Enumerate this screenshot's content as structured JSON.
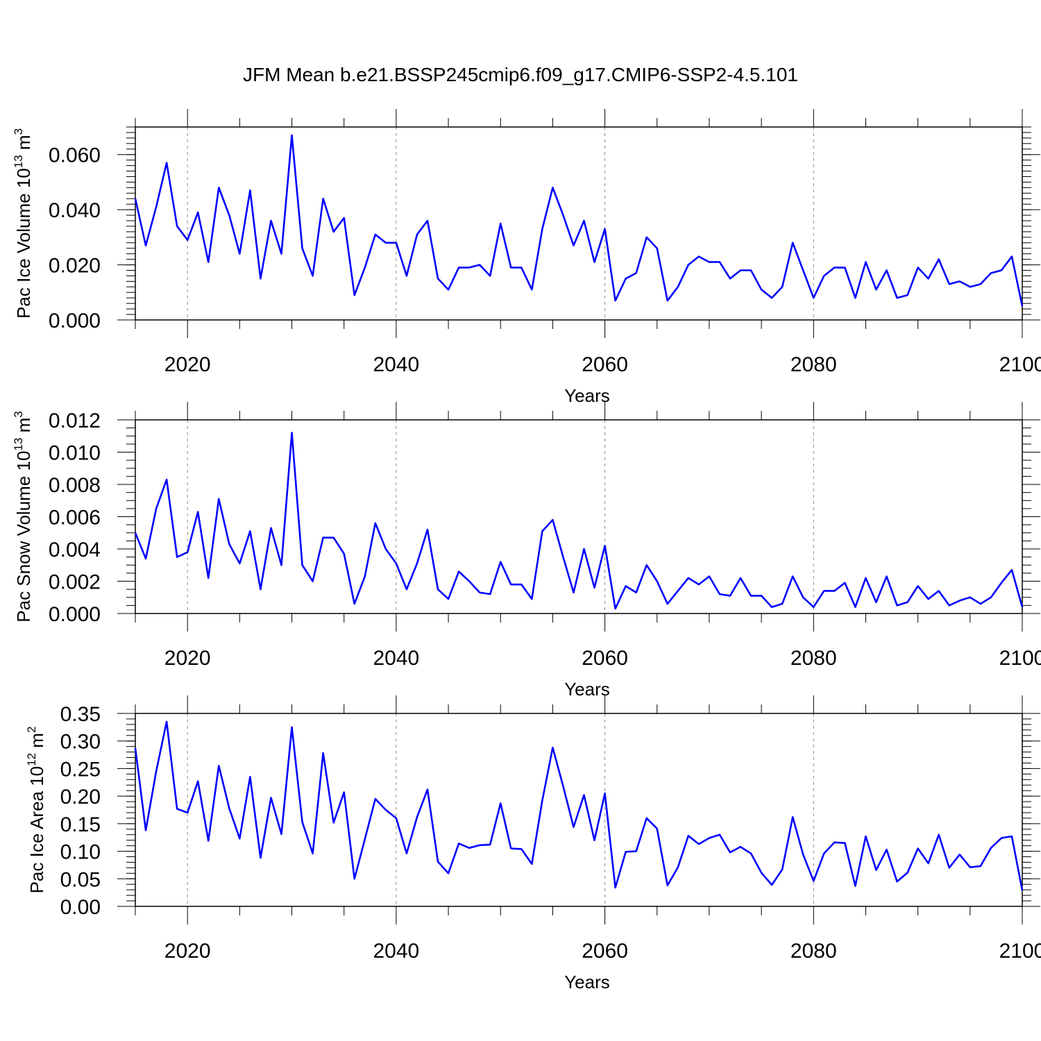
{
  "title": "JFM Mean b.e21.BSSP245cmip6.f09_g17.CMIP6-SSP2-4.5.101",
  "colors": {
    "line": "#0000ff",
    "axis": "#000000",
    "grid": "#888888"
  },
  "chart_data": [
    {
      "type": "line",
      "xlabel": "Years",
      "ylabel_main": "Pac Ice Volume 10",
      "ylabel_exp": "13",
      "ylabel_unit": " m",
      "ylabel_unit_exp": "3",
      "xlim": [
        2015,
        2100
      ],
      "ylim": [
        0.0,
        0.07
      ],
      "xticks": [
        "2020",
        "2040",
        "2060",
        "2080",
        "2100"
      ],
      "yticks": [
        "0.000",
        "0.020",
        "0.040",
        "0.060"
      ],
      "grid": "dashed vertical at major x ticks",
      "series": [
        {
          "x": [
            2015,
            2016,
            2017,
            2018,
            2019,
            2020,
            2021,
            2022,
            2023,
            2024,
            2025,
            2026,
            2027,
            2028,
            2029,
            2030,
            2031,
            2032,
            2033,
            2034,
            2035,
            2036,
            2037,
            2038,
            2039,
            2040,
            2041,
            2042,
            2043,
            2044,
            2045,
            2046,
            2047,
            2048,
            2049,
            2050,
            2051,
            2052,
            2053,
            2054,
            2055,
            2056,
            2057,
            2058,
            2059,
            2060,
            2061,
            2062,
            2063,
            2064,
            2065,
            2066,
            2067,
            2068,
            2069,
            2070,
            2071,
            2072,
            2073,
            2074,
            2075,
            2076,
            2077,
            2078,
            2079,
            2080,
            2081,
            2082,
            2083,
            2084,
            2085,
            2086,
            2087,
            2088,
            2089,
            2090,
            2091,
            2092,
            2093,
            2094,
            2095,
            2096,
            2097,
            2098,
            2099,
            2100
          ],
          "y": [
            0.044,
            0.027,
            0.041,
            0.057,
            0.034,
            0.029,
            0.039,
            0.021,
            0.048,
            0.038,
            0.024,
            0.047,
            0.015,
            0.036,
            0.024,
            0.067,
            0.026,
            0.016,
            0.044,
            0.032,
            0.037,
            0.009,
            0.019,
            0.031,
            0.028,
            0.028,
            0.016,
            0.031,
            0.036,
            0.015,
            0.011,
            0.019,
            0.019,
            0.02,
            0.016,
            0.035,
            0.019,
            0.019,
            0.011,
            0.033,
            0.048,
            0.038,
            0.027,
            0.036,
            0.021,
            0.033,
            0.007,
            0.015,
            0.017,
            0.03,
            0.026,
            0.007,
            0.012,
            0.02,
            0.023,
            0.021,
            0.021,
            0.015,
            0.018,
            0.018,
            0.011,
            0.008,
            0.012,
            0.028,
            0.018,
            0.008,
            0.016,
            0.019,
            0.019,
            0.008,
            0.021,
            0.011,
            0.018,
            0.008,
            0.009,
            0.019,
            0.015,
            0.022,
            0.013,
            0.014,
            0.012,
            0.013,
            0.017,
            0.018,
            0.023,
            0.005
          ]
        }
      ]
    },
    {
      "type": "line",
      "xlabel": "Years",
      "ylabel_main": "Pac Snow Volume 10",
      "ylabel_exp": "13",
      "ylabel_unit": " m",
      "ylabel_unit_exp": "3",
      "xlim": [
        2015,
        2100
      ],
      "ylim": [
        0.0,
        0.012
      ],
      "xticks": [
        "2020",
        "2040",
        "2060",
        "2080",
        "2100"
      ],
      "yticks": [
        "0.000",
        "0.002",
        "0.004",
        "0.006",
        "0.008",
        "0.010",
        "0.012"
      ],
      "grid": "dashed vertical at major x ticks",
      "series": [
        {
          "x": [
            2015,
            2016,
            2017,
            2018,
            2019,
            2020,
            2021,
            2022,
            2023,
            2024,
            2025,
            2026,
            2027,
            2028,
            2029,
            2030,
            2031,
            2032,
            2033,
            2034,
            2035,
            2036,
            2037,
            2038,
            2039,
            2040,
            2041,
            2042,
            2043,
            2044,
            2045,
            2046,
            2047,
            2048,
            2049,
            2050,
            2051,
            2052,
            2053,
            2054,
            2055,
            2056,
            2057,
            2058,
            2059,
            2060,
            2061,
            2062,
            2063,
            2064,
            2065,
            2066,
            2067,
            2068,
            2069,
            2070,
            2071,
            2072,
            2073,
            2074,
            2075,
            2076,
            2077,
            2078,
            2079,
            2080,
            2081,
            2082,
            2083,
            2084,
            2085,
            2086,
            2087,
            2088,
            2089,
            2090,
            2091,
            2092,
            2093,
            2094,
            2095,
            2096,
            2097,
            2098,
            2099,
            2100
          ],
          "y": [
            0.005,
            0.0034,
            0.0065,
            0.0083,
            0.0035,
            0.0038,
            0.0063,
            0.0022,
            0.0071,
            0.0043,
            0.0031,
            0.0051,
            0.0015,
            0.0053,
            0.003,
            0.0112,
            0.003,
            0.002,
            0.0047,
            0.0047,
            0.0037,
            0.0006,
            0.0023,
            0.0056,
            0.004,
            0.0031,
            0.0015,
            0.0031,
            0.0052,
            0.0015,
            0.0009,
            0.0026,
            0.002,
            0.0013,
            0.0012,
            0.0032,
            0.0018,
            0.0018,
            0.0009,
            0.0051,
            0.0058,
            0.0035,
            0.0013,
            0.004,
            0.0016,
            0.0042,
            0.0003,
            0.0017,
            0.0013,
            0.003,
            0.002,
            0.0006,
            0.0014,
            0.0022,
            0.0018,
            0.0023,
            0.0012,
            0.0011,
            0.0022,
            0.0011,
            0.0011,
            0.0004,
            0.0006,
            0.0023,
            0.001,
            0.0004,
            0.0014,
            0.0014,
            0.0019,
            0.0004,
            0.0022,
            0.0007,
            0.0023,
            0.0005,
            0.0007,
            0.0017,
            0.0009,
            0.0014,
            0.0005,
            0.0008,
            0.001,
            0.0006,
            0.001,
            0.0019,
            0.0027,
            0.0004
          ]
        }
      ]
    },
    {
      "type": "line",
      "xlabel": "Years",
      "ylabel_main": "Pac Ice Area 10",
      "ylabel_exp": "12",
      "ylabel_unit": " m",
      "ylabel_unit_exp": "2",
      "xlim": [
        2015,
        2100
      ],
      "ylim": [
        0.0,
        0.35
      ],
      "xticks": [
        "2020",
        "2040",
        "2060",
        "2080",
        "2100"
      ],
      "yticks": [
        "0.00",
        "0.05",
        "0.10",
        "0.15",
        "0.20",
        "0.25",
        "0.30",
        "0.35"
      ],
      "grid": "dashed vertical at major x ticks",
      "series": [
        {
          "x": [
            2015,
            2016,
            2017,
            2018,
            2019,
            2020,
            2021,
            2022,
            2023,
            2024,
            2025,
            2026,
            2027,
            2028,
            2029,
            2030,
            2031,
            2032,
            2033,
            2034,
            2035,
            2036,
            2037,
            2038,
            2039,
            2040,
            2041,
            2042,
            2043,
            2044,
            2045,
            2046,
            2047,
            2048,
            2049,
            2050,
            2051,
            2052,
            2053,
            2054,
            2055,
            2056,
            2057,
            2058,
            2059,
            2060,
            2061,
            2062,
            2063,
            2064,
            2065,
            2066,
            2067,
            2068,
            2069,
            2070,
            2071,
            2072,
            2073,
            2074,
            2075,
            2076,
            2077,
            2078,
            2079,
            2080,
            2081,
            2082,
            2083,
            2084,
            2085,
            2086,
            2087,
            2088,
            2089,
            2090,
            2091,
            2092,
            2093,
            2094,
            2095,
            2096,
            2097,
            2098,
            2099,
            2100
          ],
          "y": [
            0.287,
            0.138,
            0.245,
            0.335,
            0.177,
            0.17,
            0.227,
            0.119,
            0.255,
            0.178,
            0.123,
            0.235,
            0.088,
            0.197,
            0.131,
            0.325,
            0.153,
            0.096,
            0.278,
            0.152,
            0.207,
            0.05,
            0.122,
            0.195,
            0.175,
            0.16,
            0.096,
            0.162,
            0.212,
            0.081,
            0.06,
            0.114,
            0.106,
            0.111,
            0.112,
            0.187,
            0.105,
            0.104,
            0.077,
            0.192,
            0.288,
            0.218,
            0.144,
            0.202,
            0.12,
            0.205,
            0.034,
            0.099,
            0.1,
            0.16,
            0.141,
            0.038,
            0.071,
            0.128,
            0.113,
            0.124,
            0.13,
            0.098,
            0.108,
            0.096,
            0.061,
            0.039,
            0.067,
            0.162,
            0.094,
            0.046,
            0.096,
            0.116,
            0.115,
            0.037,
            0.127,
            0.066,
            0.103,
            0.045,
            0.061,
            0.105,
            0.078,
            0.13,
            0.07,
            0.094,
            0.071,
            0.073,
            0.106,
            0.124,
            0.127,
            0.029
          ]
        }
      ]
    }
  ]
}
